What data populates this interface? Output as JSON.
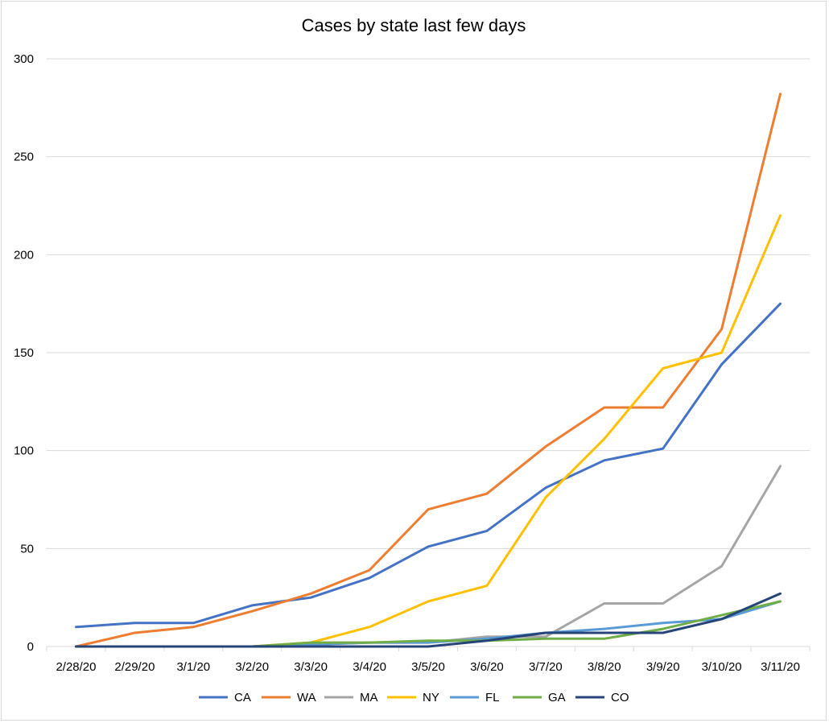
{
  "chart_data": {
    "type": "line",
    "title": "Cases by state last few days",
    "xlabel": "",
    "ylabel": "",
    "categories": [
      "2/28/20",
      "2/29/20",
      "3/1/20",
      "3/2/20",
      "3/3/20",
      "3/4/20",
      "3/5/20",
      "3/6/20",
      "3/7/20",
      "3/8/20",
      "3/9/20",
      "3/10/20",
      "3/11/20"
    ],
    "ylim": [
      0,
      300
    ],
    "yticks": [
      "0",
      "50",
      "100",
      "150",
      "200",
      "250",
      "300"
    ],
    "grid": true,
    "legend_position": "bottom",
    "series": [
      {
        "name": "CA",
        "color": "#4472C4",
        "values": [
          10,
          12,
          12,
          21,
          25,
          35,
          51,
          59,
          81,
          95,
          101,
          144,
          175
        ]
      },
      {
        "name": "WA",
        "color": "#ED7D31",
        "values": [
          0,
          7,
          10,
          18,
          27,
          39,
          70,
          78,
          102,
          122,
          122,
          162,
          282
        ]
      },
      {
        "name": "MA",
        "color": "#A5A5A5",
        "values": [
          0,
          0,
          0,
          0,
          1,
          2,
          2,
          5,
          5,
          22,
          22,
          41,
          92
        ]
      },
      {
        "name": "NY",
        "color": "#FFC000",
        "values": [
          0,
          0,
          0,
          0,
          2,
          10,
          23,
          31,
          76,
          106,
          142,
          150,
          220
        ]
      },
      {
        "name": "FL",
        "color": "#5B9BD5",
        "values": [
          0,
          0,
          0,
          0,
          1,
          2,
          2,
          4,
          7,
          9,
          12,
          14,
          23
        ]
      },
      {
        "name": "GA",
        "color": "#70AD47",
        "values": [
          0,
          0,
          0,
          0,
          2,
          2,
          3,
          3,
          4,
          4,
          9,
          16,
          23
        ]
      },
      {
        "name": "CO",
        "color": "#264478",
        "values": [
          0,
          0,
          0,
          0,
          0,
          0,
          0,
          3,
          7,
          7,
          7,
          14,
          27
        ]
      }
    ]
  }
}
